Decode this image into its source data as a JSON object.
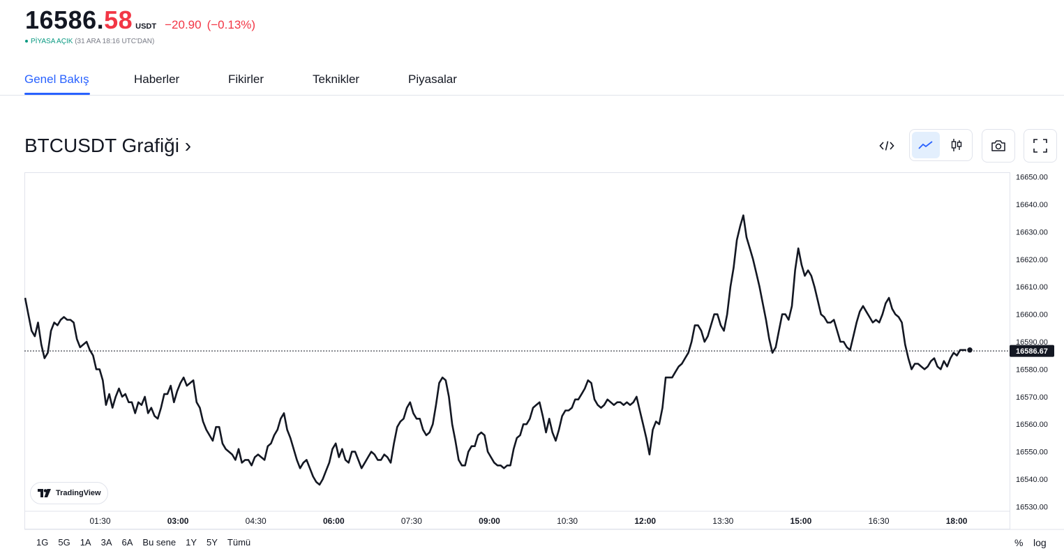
{
  "quote": {
    "price_int": "16586.",
    "price_dec": "58",
    "currency": "USDT",
    "change": "−20.90",
    "change_pct": "(−0.13%)",
    "market_status": "PİYASA AÇIK",
    "market_time": "(31 ARA 18:16 UTC'DAN)",
    "down_color": "#f23645",
    "open_color": "#089981"
  },
  "tabs": [
    {
      "label": "Genel Bakış",
      "active": true
    },
    {
      "label": "Haberler",
      "active": false
    },
    {
      "label": "Fikirler",
      "active": false
    },
    {
      "label": "Teknikler",
      "active": false
    },
    {
      "label": "Piyasalar",
      "active": false
    }
  ],
  "chart_header": {
    "title": "BTCUSDT Grafiği ›",
    "tools": [
      "embed-code-icon",
      "line-chart-icon",
      "candles-icon",
      "camera-icon",
      "fullscreen-icon"
    ]
  },
  "chart_data": {
    "type": "line",
    "series": [
      {
        "values": [
          16606,
          16600,
          16594,
          16592,
          16597,
          16589,
          16584,
          16586,
          16594,
          16597,
          16596,
          16598,
          16599,
          16598,
          16598,
          16597,
          16591,
          16588,
          16589,
          16590,
          16587,
          16585,
          16580,
          16580,
          16576,
          16567,
          16571,
          16566,
          16570,
          16573,
          16570,
          16571,
          16568,
          16568,
          16564,
          16568,
          16567,
          16570,
          16564,
          16566,
          16563,
          16562,
          16566,
          16571,
          16571,
          16574,
          16568,
          16572,
          16575,
          16577,
          16574,
          16575,
          16576,
          16568,
          16566,
          16561,
          16558,
          16556,
          16554,
          16559,
          16559,
          16553,
          16551,
          16550,
          16549,
          16547,
          16551,
          16546,
          16547,
          16547,
          16545,
          16548,
          16549,
          16548,
          16547,
          16552,
          16553,
          16556,
          16558,
          16562,
          16564,
          16558,
          16555,
          16551,
          16547,
          16544,
          16546,
          16547,
          16544,
          16541,
          16539,
          16538,
          16540,
          16543,
          16546,
          16551,
          16553,
          16548,
          16551,
          16547,
          16546,
          16550,
          16550,
          16547,
          16544,
          16546,
          16548,
          16550,
          16549,
          16547,
          16547,
          16549,
          16548,
          16546,
          16553,
          16559,
          16561,
          16562,
          16566,
          16568,
          16564,
          16562,
          16562,
          16558,
          16556,
          16557,
          16560,
          16567,
          16575,
          16577,
          16576,
          16570,
          16560,
          16554,
          16547,
          16545,
          16545,
          16550,
          16552,
          16552,
          16556,
          16557,
          16556,
          16550,
          16548,
          16546,
          16545,
          16545,
          16544,
          16545,
          16545,
          16551,
          16555,
          16556,
          16560,
          16560,
          16562,
          16566,
          16567,
          16568,
          16563,
          16557,
          16562,
          16557,
          16554,
          16558,
          16563,
          16565,
          16565,
          16566,
          16569,
          16569,
          16571,
          16573,
          16576,
          16575,
          16569,
          16567,
          16566,
          16567,
          16569,
          16568,
          16567,
          16568,
          16568,
          16567,
          16568,
          16567,
          16568,
          16570,
          16565,
          16560,
          16555,
          16549,
          16558,
          16561,
          16560,
          16566,
          16577,
          16577,
          16577,
          16579,
          16581,
          16582,
          16584,
          16586,
          16590,
          16596,
          16596,
          16594,
          16590,
          16592,
          16596,
          16600,
          16600,
          16596,
          16594,
          16600,
          16610,
          16617,
          16627,
          16632,
          16636,
          16628,
          16624,
          16620,
          16615,
          16610,
          16604,
          16598,
          16591,
          16586,
          16588,
          16594,
          16600,
          16600,
          16598,
          16603,
          16616,
          16624,
          16618,
          16614,
          16616,
          16614,
          16610,
          16605,
          16600,
          16599,
          16597,
          16597,
          16598,
          16594,
          16590,
          16590,
          16588,
          16587,
          16592,
          16597,
          16601,
          16603,
          16601,
          16599,
          16597,
          16598,
          16597,
          16600,
          16604,
          16606,
          16602,
          16600,
          16599,
          16597,
          16589,
          16584,
          16580,
          16582,
          16582,
          16581,
          16580,
          16581,
          16583,
          16584,
          16581,
          16580,
          16583,
          16581,
          16584,
          16586,
          16585,
          16587,
          16587,
          16587,
          16587
        ]
      }
    ],
    "y_ticks": [
      "16650.00",
      "16640.00",
      "16630.00",
      "16620.00",
      "16610.00",
      "16600.00",
      "16590.00",
      "16580.00",
      "16570.00",
      "16560.00",
      "16550.00",
      "16540.00",
      "16530.00"
    ],
    "ylim": [
      16528.33,
      16651.67
    ],
    "x_ticks": [
      {
        "label": "01:30",
        "bold": false
      },
      {
        "label": "03:00",
        "bold": true
      },
      {
        "label": "04:30",
        "bold": false
      },
      {
        "label": "06:00",
        "bold": true
      },
      {
        "label": "07:30",
        "bold": false
      },
      {
        "label": "09:00",
        "bold": true
      },
      {
        "label": "10:30",
        "bold": false
      },
      {
        "label": "12:00",
        "bold": true
      },
      {
        "label": "13:30",
        "bold": false
      },
      {
        "label": "15:00",
        "bold": true
      },
      {
        "label": "16:30",
        "bold": false
      },
      {
        "label": "18:00",
        "bold": true
      }
    ],
    "last_value": 16586.67,
    "last_label": "16586.67",
    "line_color": "#131722",
    "grid": false
  },
  "branding": "TradingView",
  "ranges": [
    "1G",
    "5G",
    "1A",
    "3A",
    "6A",
    "Bu sene",
    "1Y",
    "5Y",
    "Tümü"
  ],
  "scale": {
    "percent": "%",
    "log": "log"
  }
}
